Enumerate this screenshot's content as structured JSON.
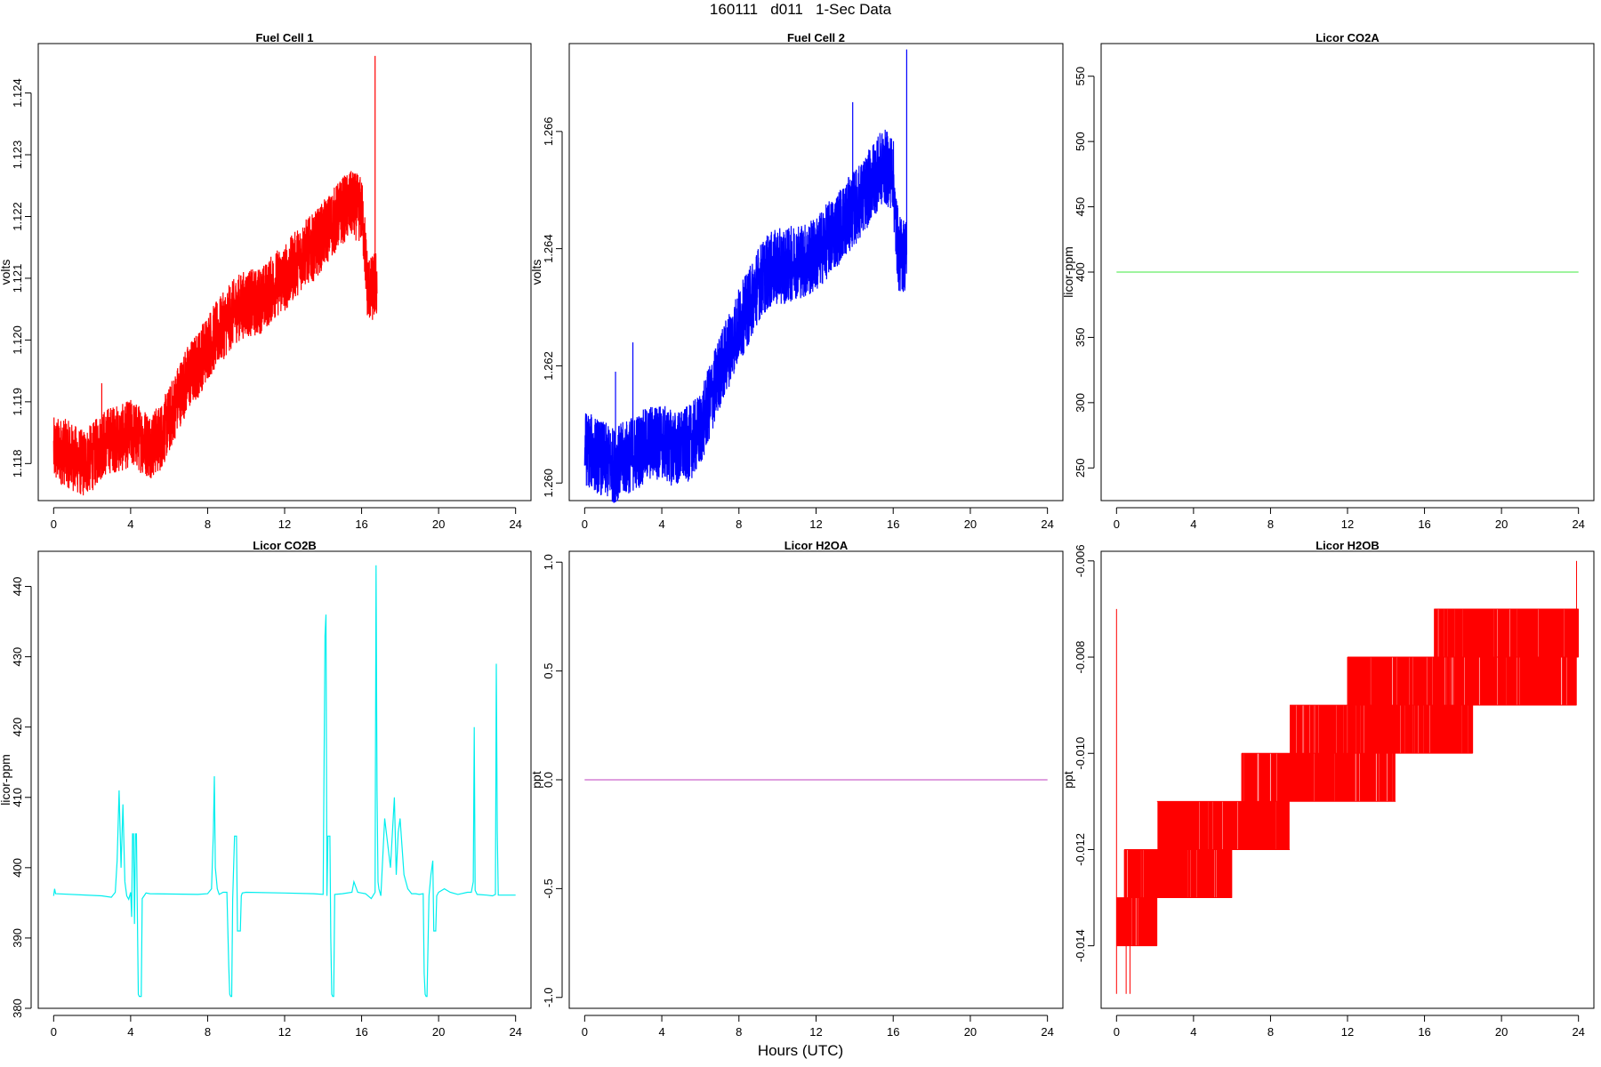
{
  "figure": {
    "title": "160111   d011   1-Sec Data",
    "xlabel": "Hours (UTC)"
  },
  "chart_data": [
    {
      "type": "line",
      "title": "Fuel Cell 1",
      "xlabel": "",
      "ylabel": "volts",
      "xlim": [
        -0.8,
        24.8
      ],
      "ylim": [
        1.1174,
        1.1248
      ],
      "xticks": [
        0,
        4,
        8,
        12,
        16,
        20,
        24
      ],
      "yticks": [
        1.118,
        1.119,
        1.12,
        1.121,
        1.122,
        1.123,
        1.124
      ],
      "ytick_labels": [
        "1.118",
        "1.119",
        "1.120",
        "1.121",
        "1.122",
        "1.123",
        "1.124"
      ],
      "color": "#ff0000",
      "grid": false,
      "noise": 0.00055,
      "series": [
        {
          "x": [
            0,
            0.5,
            1,
            1.5,
            2,
            2.5,
            3,
            3.5,
            4,
            4.5,
            5,
            5.5,
            6,
            6.5,
            7,
            7.5,
            8,
            8.5,
            9,
            9.5,
            10,
            10.5,
            11,
            11.5,
            12,
            12.5,
            13,
            13.5,
            14,
            14.5,
            15,
            15.5,
            16,
            16.1,
            16.3,
            16.5,
            16.7,
            16.8
          ],
          "y": [
            1.1182,
            1.1182,
            1.1181,
            1.118,
            1.1181,
            1.1183,
            1.1184,
            1.1184,
            1.1185,
            1.1184,
            1.1183,
            1.1184,
            1.1187,
            1.1191,
            1.1194,
            1.1196,
            1.1199,
            1.1201,
            1.1203,
            1.1205,
            1.1206,
            1.1206,
            1.1207,
            1.1209,
            1.121,
            1.1212,
            1.1214,
            1.1215,
            1.1217,
            1.1219,
            1.1221,
            1.1222,
            1.1221,
            1.1218,
            1.1209,
            1.1208,
            1.1209,
            1.1209
          ]
        }
      ],
      "spikes": [
        {
          "x": 2.5,
          "y": 1.1193
        },
        {
          "x": 16.7,
          "y": 1.1246
        }
      ]
    },
    {
      "type": "line",
      "title": "Fuel Cell 2",
      "xlabel": "",
      "ylabel": "volts",
      "xlim": [
        -0.8,
        24.8
      ],
      "ylim": [
        1.2597,
        1.2675
      ],
      "xticks": [
        0,
        4,
        8,
        12,
        16,
        20,
        24
      ],
      "yticks": [
        1.26,
        1.262,
        1.264,
        1.266
      ],
      "ytick_labels": [
        "1.260",
        "1.262",
        "1.264",
        "1.266"
      ],
      "color": "#0000ff",
      "grid": false,
      "noise": 0.00065,
      "series": [
        {
          "x": [
            0,
            0.5,
            1,
            1.5,
            2,
            2.5,
            3,
            3.5,
            4,
            4.5,
            5,
            5.5,
            6,
            6.5,
            7,
            7.5,
            8,
            8.5,
            9,
            9.5,
            10,
            10.5,
            11,
            11.5,
            12,
            12.5,
            13,
            13.5,
            14,
            14.5,
            15,
            15.5,
            16,
            16.1,
            16.3,
            16.5,
            16.7
          ],
          "y": [
            1.2606,
            1.2605,
            1.2604,
            1.2603,
            1.2604,
            1.2605,
            1.2606,
            1.2607,
            1.2607,
            1.2606,
            1.2606,
            1.2607,
            1.2609,
            1.2614,
            1.2619,
            1.2623,
            1.2627,
            1.263,
            1.2634,
            1.2636,
            1.2637,
            1.2637,
            1.2638,
            1.2638,
            1.2639,
            1.2641,
            1.2643,
            1.2645,
            1.2647,
            1.2649,
            1.2652,
            1.2654,
            1.2653,
            1.2645,
            1.2639,
            1.2639,
            1.2639
          ]
        }
      ],
      "spikes": [
        {
          "x": 1.6,
          "y": 1.2619
        },
        {
          "x": 2.5,
          "y": 1.2624
        },
        {
          "x": 7.2,
          "y": 1.2623
        },
        {
          "x": 13.9,
          "y": 1.2665
        },
        {
          "x": 16.7,
          "y": 1.2674
        }
      ]
    },
    {
      "type": "line",
      "title": "Licor CO2A",
      "xlabel": "",
      "ylabel": "licor-ppm",
      "xlim": [
        -0.8,
        24.8
      ],
      "ylim": [
        225,
        575
      ],
      "xticks": [
        0,
        4,
        8,
        12,
        16,
        20,
        24
      ],
      "yticks": [
        250,
        300,
        350,
        400,
        450,
        500,
        550
      ],
      "ytick_labels": [
        "250",
        "300",
        "350",
        "400",
        "450",
        "500",
        "550"
      ],
      "color": "#66ee66",
      "grid": false,
      "series": [
        {
          "x": [
            0,
            24
          ],
          "y": [
            400,
            400
          ]
        }
      ]
    },
    {
      "type": "line",
      "title": "Licor CO2B",
      "xlabel": "",
      "ylabel": "licor-ppm",
      "xlim": [
        -0.8,
        24.8
      ],
      "ylim": [
        380,
        445
      ],
      "xticks": [
        0,
        4,
        8,
        12,
        16,
        20,
        24
      ],
      "yticks": [
        380,
        390,
        400,
        410,
        420,
        430,
        440
      ],
      "ytick_labels": [
        "380",
        "390",
        "400",
        "410",
        "420",
        "430",
        "440"
      ],
      "color": "#00eeee",
      "grid": false,
      "series": [
        {
          "x": [
            0,
            0.05,
            0.1,
            2.5,
            3.0,
            3.2,
            3.3,
            3.4,
            3.5,
            3.6,
            3.7,
            3.8,
            3.9,
            4.0,
            4.05,
            4.1,
            4.15,
            4.2,
            4.25,
            4.3,
            4.4,
            4.45,
            4.5,
            4.55,
            4.6,
            4.8,
            5.0,
            7.5,
            8.0,
            8.2,
            8.3,
            8.35,
            8.4,
            8.5,
            8.6,
            8.8,
            9.0,
            9.1,
            9.15,
            9.2,
            9.25,
            9.3,
            9.4,
            9.5,
            9.55,
            9.6,
            9.7,
            9.75,
            9.8,
            10.0,
            12.0,
            13.5,
            14.0,
            14.1,
            14.15,
            14.2,
            14.25,
            14.3,
            14.35,
            14.4,
            14.45,
            14.5,
            14.55,
            14.6,
            15.0,
            15.5,
            15.6,
            15.8,
            16.0,
            16.2,
            16.5,
            16.7,
            16.75,
            16.8,
            16.85,
            16.9,
            17.0,
            17.2,
            17.5,
            17.7,
            17.8,
            17.9,
            18.0,
            18.2,
            18.4,
            18.6,
            18.8,
            19.0,
            19.2,
            19.25,
            19.3,
            19.35,
            19.4,
            19.5,
            19.6,
            19.7,
            19.75,
            19.8,
            19.85,
            19.9,
            20.0,
            20.3,
            20.6,
            21.0,
            21.5,
            21.7,
            21.8,
            21.85,
            21.9,
            22.0,
            22.5,
            22.8,
            22.95,
            23.0,
            23.05,
            23.1,
            23.2,
            24.0
          ],
          "y": [
            396,
            397,
            396.3,
            396,
            395.8,
            396.5,
            401,
            411,
            400,
            409,
            398,
            396,
            395.5,
            396.5,
            393,
            404.8,
            404.8,
            392,
            404.8,
            404.8,
            382,
            381.7,
            381.7,
            381.7,
            395.6,
            396.4,
            396.3,
            396.2,
            396.3,
            397,
            405,
            413,
            400,
            397,
            396.2,
            396.5,
            396.5,
            386,
            382,
            381.7,
            381.7,
            395.5,
            404.5,
            404.5,
            391,
            391,
            391,
            396,
            396.4,
            396.5,
            396.4,
            396.3,
            396.2,
            433,
            436,
            396,
            404.5,
            404.5,
            404.5,
            390,
            382,
            381.7,
            381.7,
            396.2,
            396.3,
            396.5,
            398,
            396.5,
            396.4,
            396.3,
            395.6,
            396.5,
            443,
            411,
            398,
            397,
            396,
            407,
            400,
            410,
            399,
            405,
            407,
            399,
            397,
            396.3,
            396.3,
            396.2,
            396.3,
            385,
            382,
            381.7,
            381.7,
            396,
            399,
            401,
            391,
            391,
            391,
            396,
            396.5,
            397,
            396.5,
            396.2,
            396.5,
            396.5,
            398,
            420,
            396.8,
            396.2,
            396.1,
            396,
            396.2,
            429,
            405,
            396.1,
            396.1,
            396.1
          ]
        }
      ]
    },
    {
      "type": "line",
      "title": "Licor H2OA",
      "xlabel": "",
      "ylabel": "ppt",
      "xlim": [
        -0.8,
        24.8
      ],
      "ylim": [
        -1.05,
        1.05
      ],
      "xticks": [
        0,
        4,
        8,
        12,
        16,
        20,
        24
      ],
      "yticks": [
        -1.0,
        -0.5,
        0.0,
        0.5,
        1.0
      ],
      "ytick_labels": [
        "-1.0",
        "-0.5",
        "0.0",
        "0.5",
        "1.0"
      ],
      "color": "#cc66cc",
      "grid": false,
      "series": [
        {
          "x": [
            0,
            24
          ],
          "y": [
            0,
            0
          ]
        }
      ]
    },
    {
      "type": "line",
      "title": "Licor H2OB",
      "xlabel": "",
      "ylabel": "ppt",
      "xlim": [
        -0.8,
        24.8
      ],
      "ylim": [
        -0.0153,
        -0.0058
      ],
      "xticks": [
        0,
        4,
        8,
        12,
        16,
        20,
        24
      ],
      "yticks": [
        -0.014,
        -0.012,
        -0.01,
        -0.008,
        -0.006
      ],
      "ytick_labels": [
        "-0.014",
        "-0.012",
        "-0.010",
        "-0.008",
        "-0.006"
      ],
      "color": "#ff0000",
      "grid": false,
      "steps": [
        {
          "x0": 0,
          "x1": 2.1,
          "lo": -0.014,
          "hi": -0.013
        },
        {
          "x0": 0.4,
          "x1": 6.0,
          "lo": -0.013,
          "hi": -0.012
        },
        {
          "x0": 2.1,
          "x1": 9.0,
          "lo": -0.012,
          "hi": -0.011
        },
        {
          "x0": 6.5,
          "x1": 14.5,
          "lo": -0.011,
          "hi": -0.01
        },
        {
          "x0": 9.0,
          "x1": 18.5,
          "lo": -0.01,
          "hi": -0.009
        },
        {
          "x0": 12.0,
          "x1": 23.9,
          "lo": -0.009,
          "hi": -0.008
        },
        {
          "x0": 16.5,
          "x1": 24.0,
          "lo": -0.008,
          "hi": -0.007
        }
      ],
      "spikes": [
        {
          "x": 0.0,
          "y0": -0.015,
          "y1": -0.007
        },
        {
          "x": 0.5,
          "y0": -0.015,
          "y1": -0.014
        },
        {
          "x": 0.7,
          "y0": -0.015,
          "y1": -0.014
        },
        {
          "x": 23.9,
          "y0": -0.008,
          "y1": -0.006
        }
      ]
    }
  ]
}
